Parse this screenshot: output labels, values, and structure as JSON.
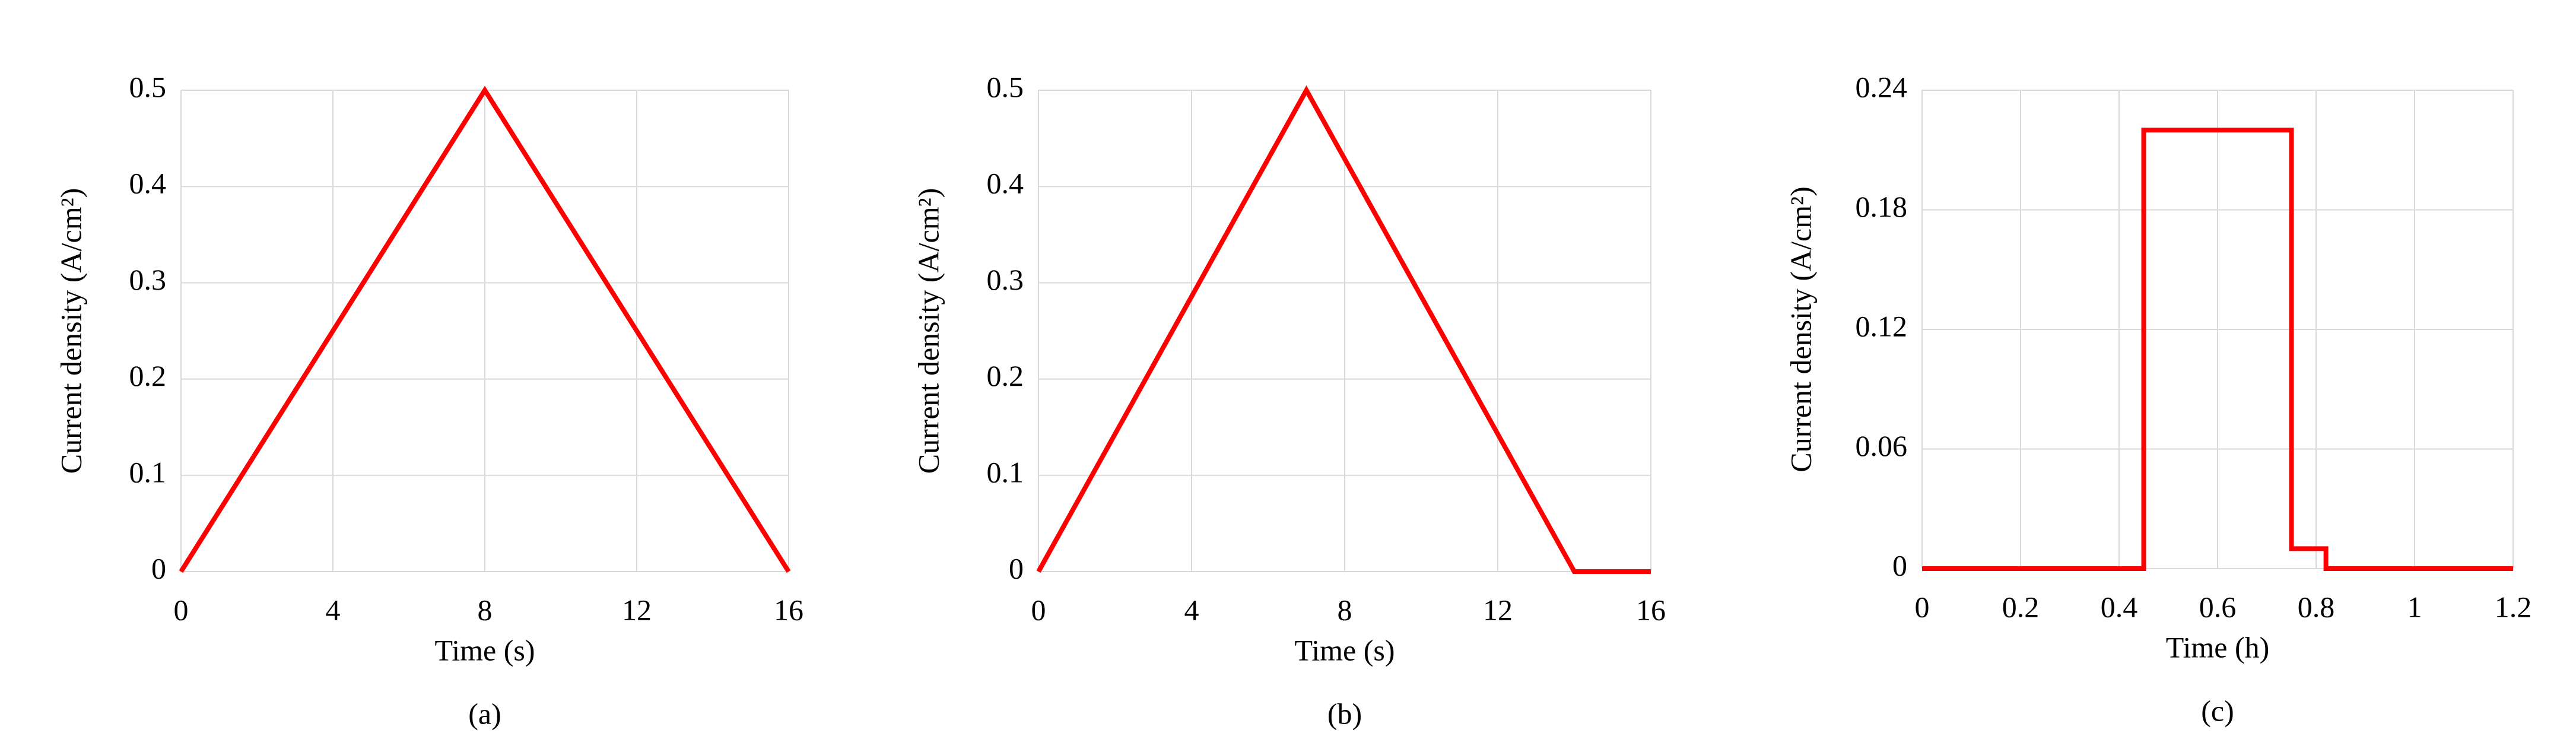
{
  "chart_data": [
    {
      "type": "line",
      "caption": "(a)",
      "xlabel": "Time (s)",
      "ylabel": "Current density (A/cm²)",
      "x": [
        0,
        8,
        16
      ],
      "values": [
        0,
        0.5,
        0
      ],
      "color": "#ff0000",
      "xlim": [
        0,
        16
      ],
      "xticks": [
        0,
        4,
        8,
        12,
        16
      ],
      "ylim": [
        0,
        0.5
      ],
      "yticks": [
        0,
        0.1,
        0.2,
        0.3,
        0.4,
        0.5
      ],
      "grid": true
    },
    {
      "type": "line",
      "caption": "(b)",
      "xlabel": "Time (s)",
      "ylabel": "Current density (A/cm²)",
      "x": [
        0,
        7,
        14,
        16
      ],
      "values": [
        0,
        0.5,
        0,
        0
      ],
      "color": "#ff0000",
      "xlim": [
        0,
        16
      ],
      "xticks": [
        0,
        4,
        8,
        12,
        16
      ],
      "ylim": [
        0,
        0.5
      ],
      "yticks": [
        0,
        0.1,
        0.2,
        0.3,
        0.4,
        0.5
      ],
      "grid": true
    },
    {
      "type": "line",
      "caption": "(c)",
      "xlabel": "Time (h)",
      "ylabel": "Current density (A/cm²)",
      "x": [
        0,
        0.45,
        0.45,
        0.75,
        0.75,
        0.82,
        0.82,
        1.2
      ],
      "values": [
        0,
        0,
        0.22,
        0.22,
        0.01,
        0.01,
        0,
        0
      ],
      "color": "#ff0000",
      "xlim": [
        0,
        1.2
      ],
      "xticks": [
        0,
        0.2,
        0.4,
        0.6,
        0.8,
        1,
        1.2
      ],
      "ylim": [
        0,
        0.24
      ],
      "yticks": [
        0,
        0.06,
        0.12,
        0.18,
        0.24
      ],
      "grid": true
    }
  ]
}
